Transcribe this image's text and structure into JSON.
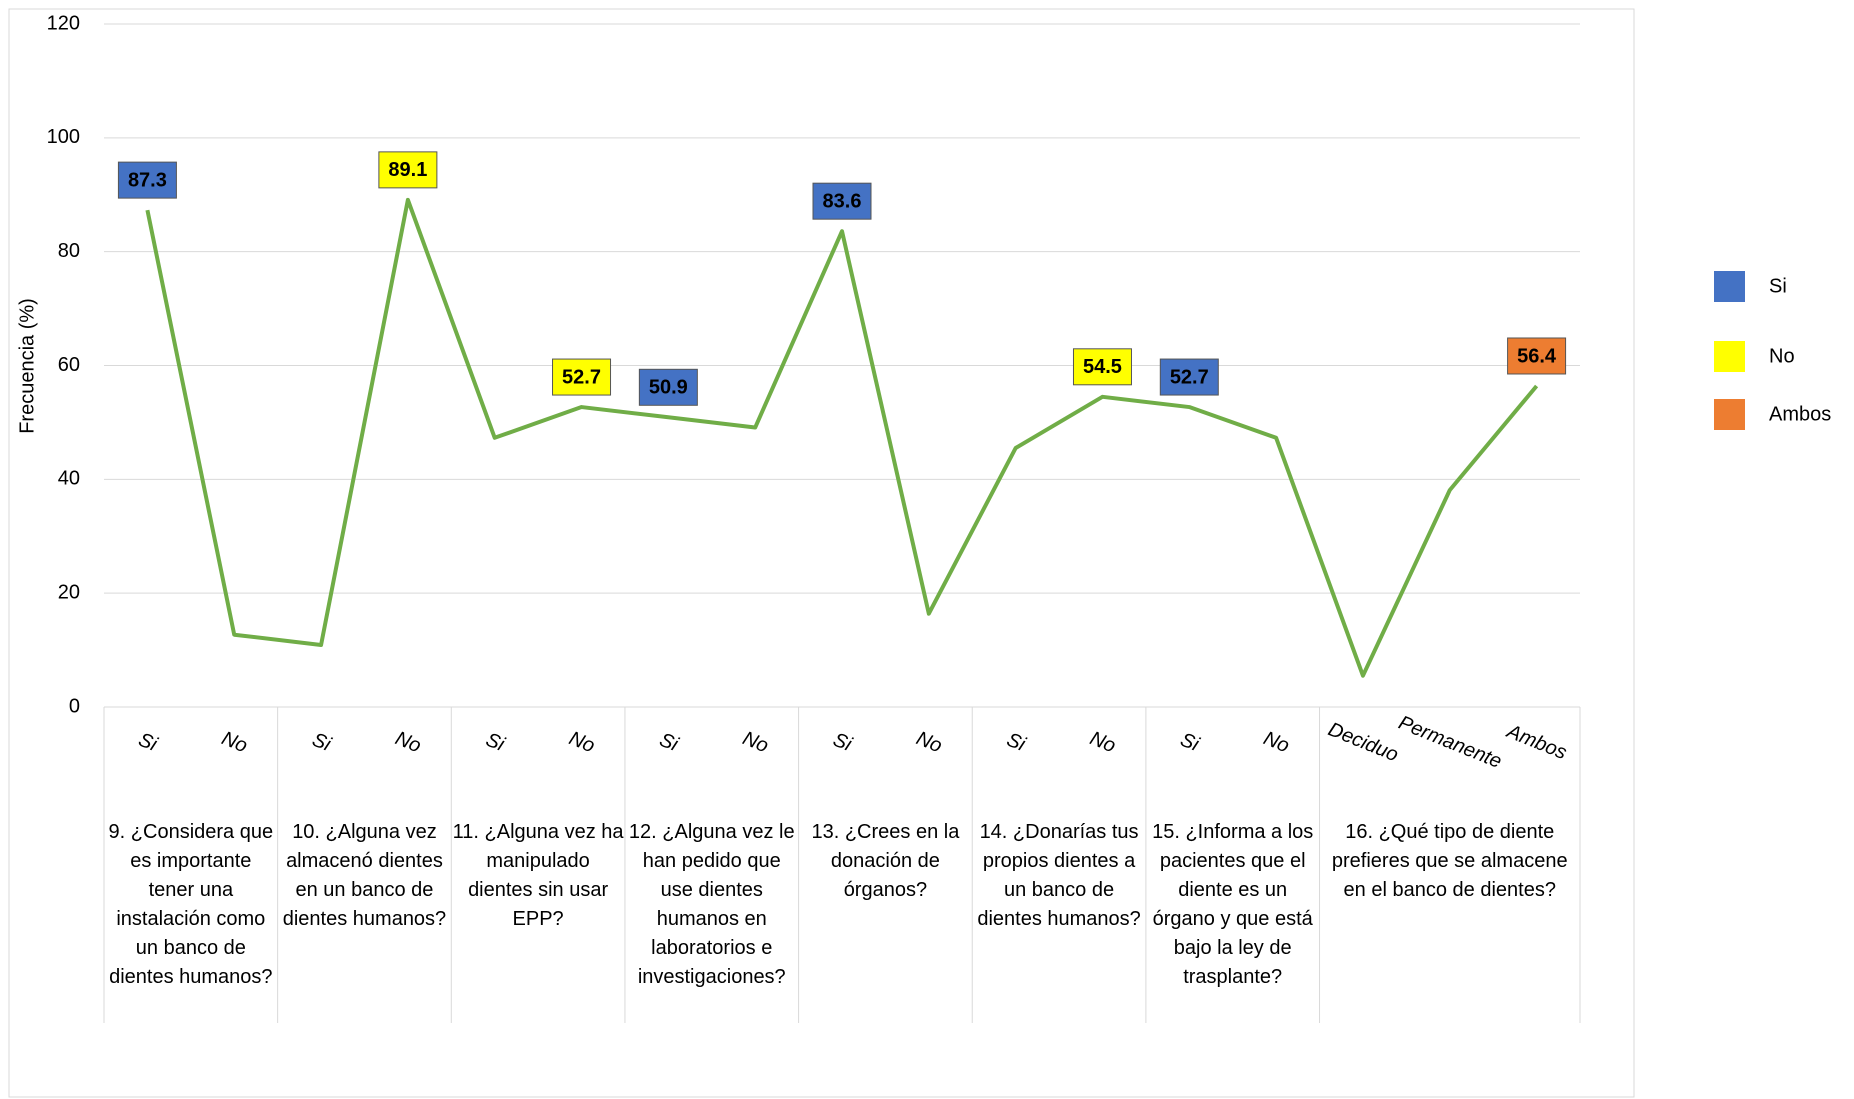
{
  "chart_data": {
    "type": "line",
    "y_axis_label": "Frecuencia (%)",
    "groups": [
      {
        "label": "9. ¿Considera que es importante tener una instalación como un banco de dientes humanos?",
        "categories": [
          "Si",
          "No"
        ]
      },
      {
        "label": "10. ¿Alguna vez almacenó dientes en un banco de dientes humanos?",
        "categories": [
          "Si",
          "No"
        ]
      },
      {
        "label": "11. ¿Alguna vez ha manipulado dientes sin usar EPP?",
        "categories": [
          "Si",
          "No"
        ]
      },
      {
        "label": "12. ¿Alguna vez le han pedido que use dientes humanos en laboratorios e investigaciones?",
        "categories": [
          "Si",
          "No"
        ]
      },
      {
        "label": "13. ¿Crees en la donación de órganos?",
        "categories": [
          "Si",
          "No"
        ]
      },
      {
        "label": "14. ¿Donarías tus propios dientes a un banco de dientes humanos?",
        "categories": [
          "Si",
          "No"
        ]
      },
      {
        "label": "15. ¿Informa a los pacientes que el diente es un órgano y que está bajo la ley de trasplante?",
        "categories": [
          "Si",
          "No"
        ]
      },
      {
        "label": "16. ¿Qué tipo de diente prefieres que se almacene en el banco de dientes?",
        "categories": [
          "Deciduo",
          "Permanente",
          "Ambos"
        ]
      }
    ],
    "values": [
      87.3,
      12.7,
      10.9,
      89.1,
      47.3,
      52.7,
      50.9,
      49.1,
      83.6,
      16.4,
      45.5,
      54.5,
      52.7,
      47.3,
      5.5,
      38.1,
      56.4
    ],
    "color": "#70ad47",
    "label_colors": [
      "#4472c4",
      null,
      null,
      "#ffff00",
      null,
      "#ffff00",
      "#4472c4",
      null,
      "#4472c4",
      null,
      null,
      "#ffff00",
      "#4472c4",
      null,
      null,
      null,
      "#ed7d31"
    ],
    "legend": [
      {
        "name": "Si",
        "color": "#4472c4"
      },
      {
        "name": "No",
        "color": "#ffff00"
      },
      {
        "name": "Ambos",
        "color": "#ed7d31"
      }
    ],
    "ylim": [
      0,
      120
    ],
    "yticks": [
      0,
      20,
      40,
      60,
      80,
      100,
      120
    ],
    "grid": true
  }
}
